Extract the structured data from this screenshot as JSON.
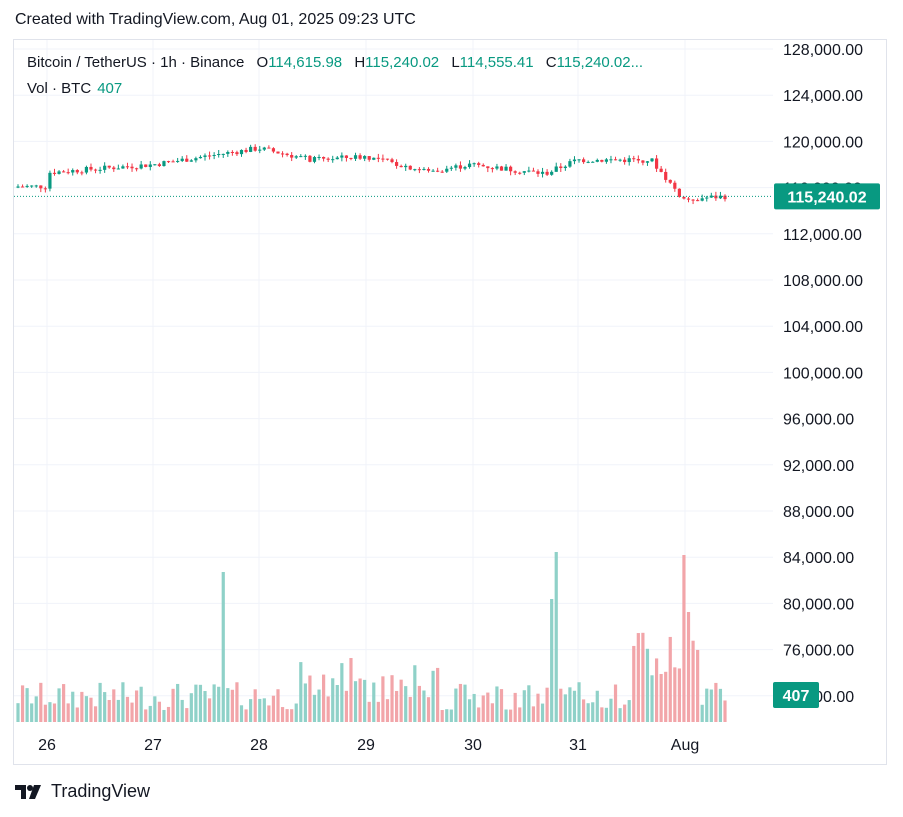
{
  "header": {
    "text": "Created with TradingView.com, Aug 01, 2025 09:23 UTC"
  },
  "legend": {
    "symbol": "Bitcoin / TetherUS · 1h · Binance",
    "open_label": "O",
    "open": "114,615.98",
    "high_label": "H",
    "high": "115,240.02",
    "low_label": "L",
    "low": "114,555.41",
    "close_label": "C",
    "close": "115,240.02...",
    "volume_label": "Vol · BTC",
    "volume": "407"
  },
  "footer": {
    "brand": "TradingView"
  },
  "colors": {
    "up": "#089981",
    "down": "#f23645",
    "vol_up": "#8fd1c8",
    "vol_down": "#f2a5a9",
    "grid": "#f0f3fa",
    "axis_text": "#131722"
  },
  "chart_data": {
    "type": "line",
    "title": "Bitcoin / TetherUS · 1h · Binance",
    "y_ticks": [
      "128,000.00",
      "124,000.00",
      "120,000.00",
      "116,000.00",
      "112,000.00",
      "108,000.00",
      "104,000.00",
      "100,000.00",
      "96,000.00",
      "92,000.00",
      "88,000.00",
      "84,000.00",
      "80,000.00",
      "76,000.00",
      "72,000.00"
    ],
    "ylim": [
      70000,
      129000
    ],
    "x_ticks": [
      "26",
      "27",
      "28",
      "29",
      "30",
      "31",
      "Aug"
    ],
    "last_price_label": "115,240.02",
    "last_volume_label": "407",
    "grid": true,
    "series": [
      {
        "name": "Price",
        "approx_close_by_day": [
          {
            "x": "26",
            "value": 117300
          },
          {
            "x": "27",
            "value": 118000
          },
          {
            "x": "27.7",
            "value": 119000
          },
          {
            "x": "28",
            "value": 119400
          },
          {
            "x": "28.5",
            "value": 118400
          },
          {
            "x": "29",
            "value": 118700
          },
          {
            "x": "29.6",
            "value": 117400
          },
          {
            "x": "30",
            "value": 118000
          },
          {
            "x": "30.7",
            "value": 117200
          },
          {
            "x": "31",
            "value": 118400
          },
          {
            "x": "31.7",
            "value": 118400
          },
          {
            "x": "Aug",
            "value": 115000
          },
          {
            "x": "Aug+0.4",
            "value": 115240
          }
        ]
      },
      {
        "name": "Volume",
        "peaks_note_values": [
          {
            "x": "27.7",
            "value": 83000
          },
          {
            "x": "30.8",
            "value": 84500
          },
          {
            "x": "Aug",
            "value": 84200
          }
        ]
      }
    ]
  }
}
